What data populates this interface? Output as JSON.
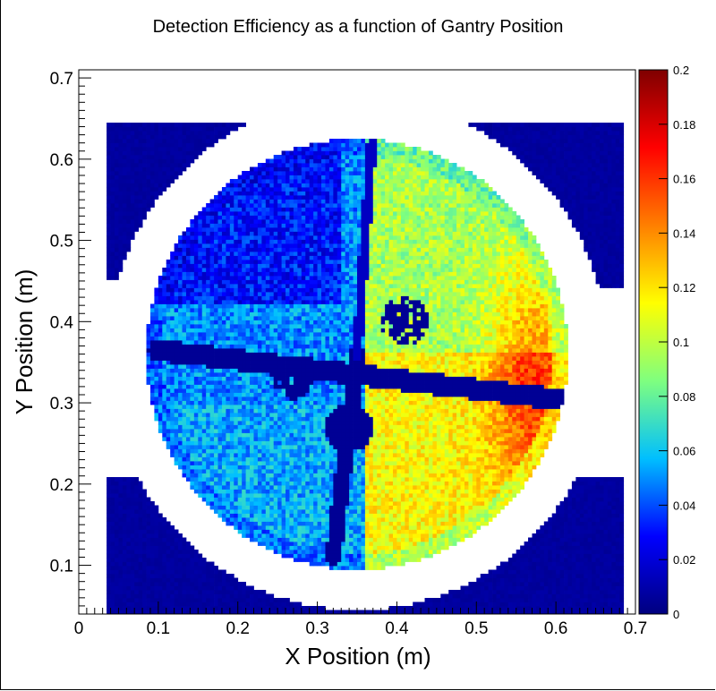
{
  "chart_data": {
    "type": "heatmap",
    "title": "Detection Efficiency as a function of Gantry Position",
    "xlabel": "X Position (m)",
    "ylabel": "Y Position (m)",
    "xlim": [
      0.0,
      0.7
    ],
    "ylim": [
      0.04,
      0.71
    ],
    "x_ticks": [
      "0",
      "0.1",
      "0.2",
      "0.3",
      "0.4",
      "0.5",
      "0.6",
      "0.7"
    ],
    "y_ticks": [
      "0.1",
      "0.2",
      "0.3",
      "0.4",
      "0.5",
      "0.6",
      "0.7"
    ],
    "colorbar": {
      "range": [
        0,
        0.2
      ],
      "ticks": [
        "0",
        "0.02",
        "0.04",
        "0.06",
        "0.08",
        "0.1",
        "0.12",
        "0.14",
        "0.16",
        "0.18",
        "0.2"
      ],
      "colormap": [
        "#00007f",
        "#0000ff",
        "#00bfff",
        "#7fff7f",
        "#ffff00",
        "#ff7f00",
        "#ff0000",
        "#7f0000"
      ]
    },
    "grid": false,
    "regions": {
      "central_disk": {
        "center": [
          0.35,
          0.36
        ],
        "radius": 0.265,
        "typical_value": 0.06
      },
      "hot_region": {
        "x_range": [
          0.45,
          0.6
        ],
        "y_range": [
          0.2,
          0.45
        ],
        "peak_value": 0.15
      },
      "low_corners": {
        "value": 0.005,
        "extent": [
          [
            0.035,
            0.685
          ],
          [
            0.04,
            0.645
          ]
        ]
      }
    }
  }
}
